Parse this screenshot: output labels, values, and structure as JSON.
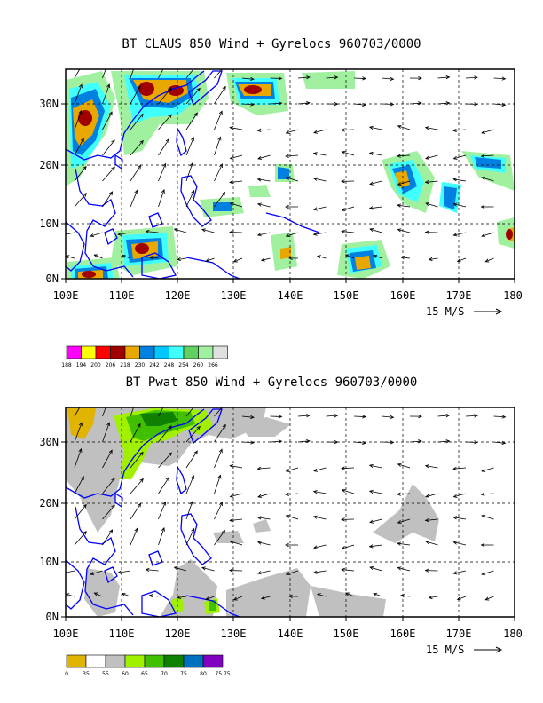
{
  "panels": [
    {
      "title": "BT CLAUS 850 Wind + Gyrelocs 960703/0000",
      "x_ticks": [
        "100E",
        "110E",
        "120E",
        "130E",
        "140E",
        "150E",
        "160E",
        "170E",
        "180"
      ],
      "y_ticks": [
        "0N",
        "10N",
        "20N",
        "30N"
      ],
      "vector_scale_label": "15 M/S",
      "legend_labels": [
        "188",
        "194",
        "200",
        "206",
        "218",
        "230",
        "242",
        "248",
        "254",
        "260",
        "266"
      ],
      "legend_colors": [
        "#ff00ff",
        "#ffff00",
        "#ff0000",
        "#a00000",
        "#e8a800",
        "#0080e0",
        "#00c8ff",
        "#40ffff",
        "#60d060",
        "#a0f0a0",
        "#e0e0e0"
      ]
    },
    {
      "title": "BT Pwat 850 Wind + Gyrelocs 960703/0000",
      "x_ticks": [
        "100E",
        "110E",
        "120E",
        "130E",
        "140E",
        "150E",
        "160E",
        "170E",
        "180"
      ],
      "y_ticks": [
        "0N",
        "10N",
        "20N",
        "30N"
      ],
      "vector_scale_label": "15 M/S",
      "legend_labels": [
        "0",
        "35",
        "55",
        "60",
        "65",
        "70",
        "75",
        "80",
        "75.75"
      ],
      "legend_colors": [
        "#e0b400",
        "#ffffff",
        "#c0c0c0",
        "#a0f000",
        "#40c000",
        "#108000",
        "#0070c0",
        "#8000c0"
      ]
    }
  ]
}
